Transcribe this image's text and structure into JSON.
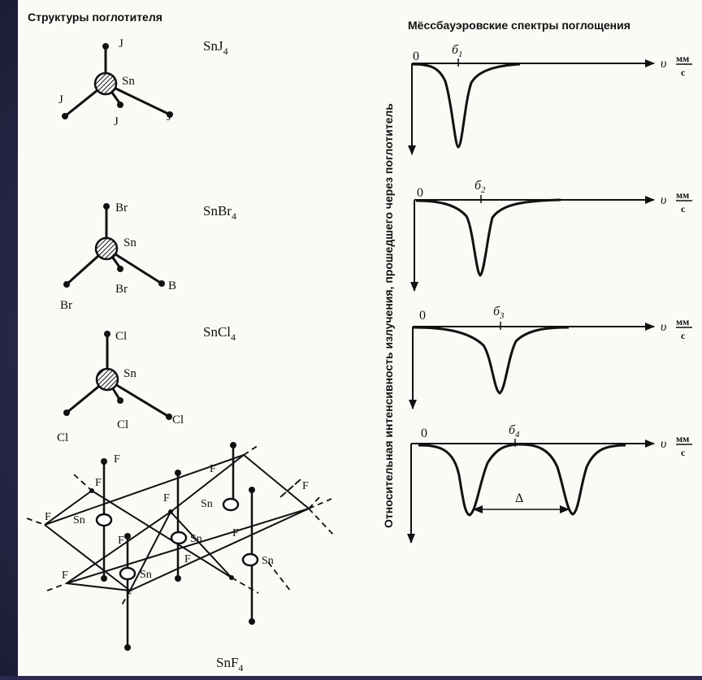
{
  "left_heading": "Структуры поглотителя",
  "right_heading": "Мёссбауэровские спектры поглощения",
  "y_axis_label": "Относительная интенсивность излучения, прошедшего через поглотитель",
  "molecules": [
    {
      "formula": "SnJ",
      "sub": "4",
      "center": "Sn",
      "ligands": [
        "J",
        "J",
        "J",
        "J"
      ]
    },
    {
      "formula": "SnBr",
      "sub": "4",
      "center": "Sn",
      "ligands": [
        "Br",
        "Br",
        "Br",
        "B"
      ]
    },
    {
      "formula": "SnCl",
      "sub": "4",
      "center": "Sn",
      "ligands": [
        "Cl",
        "Cl",
        "Cl",
        "Cl"
      ]
    }
  ],
  "lattice": {
    "formula": "SnF",
    "sub": "4",
    "atom_sn": "Sn",
    "atom_f": "F"
  },
  "spectra": [
    {
      "zero": "0",
      "shift": "б",
      "shift_sub": "1",
      "axis_v": "υ",
      "unit_num": "мм",
      "unit_den": "с"
    },
    {
      "zero": "0",
      "shift": "б",
      "shift_sub": "2",
      "axis_v": "υ",
      "unit_num": "мм",
      "unit_den": "с"
    },
    {
      "zero": "0",
      "shift": "б",
      "shift_sub": "3",
      "axis_v": "υ",
      "unit_num": "мм",
      "unit_den": "с"
    },
    {
      "zero": "0",
      "shift": "б",
      "shift_sub": "4",
      "axis_v": "υ",
      "unit_num": "мм",
      "unit_den": "с",
      "splitting": "Δ"
    }
  ]
}
